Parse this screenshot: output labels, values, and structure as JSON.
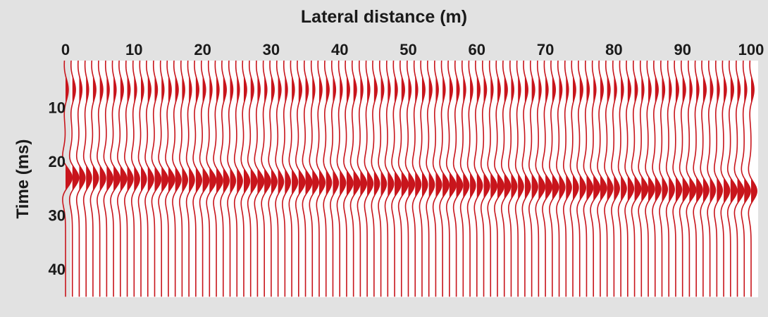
{
  "chart_data": {
    "type": "seismic-wiggle",
    "xlabel": "Lateral distance (m)",
    "ylabel": "Time (ms)",
    "x_ticks": [
      0,
      10,
      20,
      30,
      40,
      50,
      60,
      70,
      80,
      90,
      100
    ],
    "y_ticks": [
      10,
      20,
      30,
      40
    ],
    "xlim": [
      0,
      100
    ],
    "ylim": [
      1.3,
      45.2
    ],
    "y_inverted": true,
    "trace_count": 101,
    "trace_spacing_m": 1,
    "trace_color": "#c8151c",
    "background_color": "#ffffff",
    "events": [
      {
        "name": "event-1",
        "time_ms_at_x0": 6.7,
        "time_ms_at_x100": 6.7,
        "peak_amplitude_m": 0.45
      },
      {
        "name": "event-2",
        "time_ms_at_x0": 23.0,
        "time_ms_at_x100": 25.5,
        "peak_amplitude_m": 0.95
      }
    ]
  }
}
